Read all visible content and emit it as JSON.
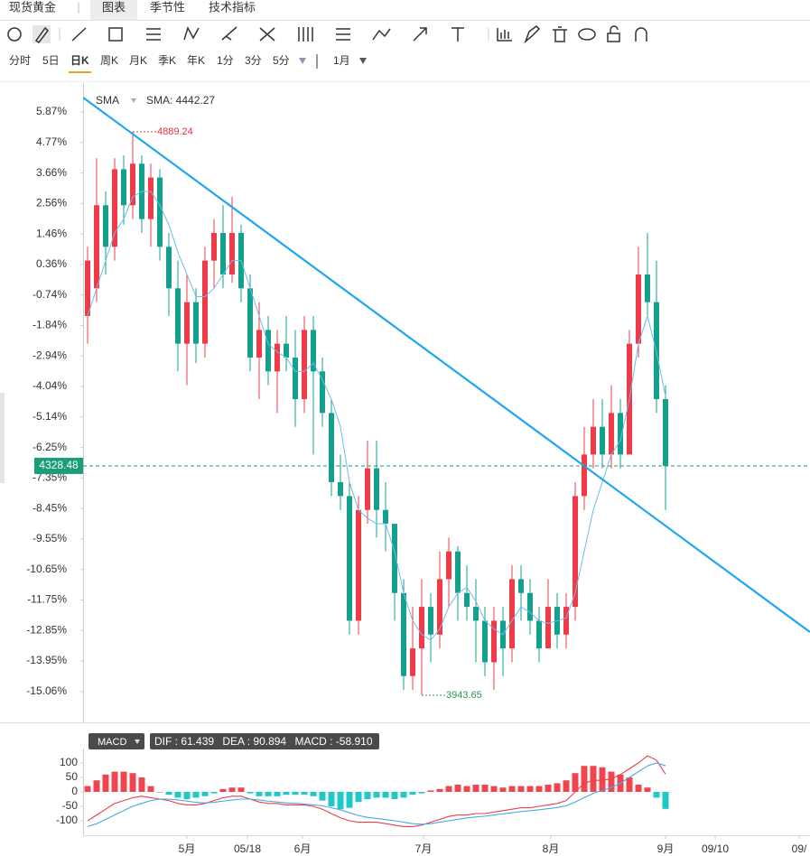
{
  "tabs": {
    "title": "现货黄金",
    "items": [
      "图表",
      "季节性",
      "技术指标"
    ]
  },
  "periods": [
    "分时",
    "5日",
    "日K",
    "周K",
    "月K",
    "季K",
    "年K",
    "1分",
    "3分",
    "5分"
  ],
  "range": "1月",
  "chart_data": [
    {
      "type": "candlestick",
      "up_color": "#ef3b48",
      "down_color": "#14a08c",
      "xlim": [
        -0.5,
        80
      ],
      "ylim": [
        -16.17,
        6.91
      ],
      "yticks": [
        {
          "value": 5.87,
          "label": "5.87%"
        },
        {
          "value": 4.77,
          "label": "4.77%"
        },
        {
          "value": 3.66,
          "label": "3.66%"
        },
        {
          "value": 2.56,
          "label": "2.56%"
        },
        {
          "value": 1.46,
          "label": "1.46%"
        },
        {
          "value": 0.36,
          "label": "0.36%"
        },
        {
          "value": -0.74,
          "label": "-0.74%"
        },
        {
          "value": -1.84,
          "label": "-1.84%"
        },
        {
          "value": -2.94,
          "label": "-2.94%"
        },
        {
          "value": -4.04,
          "label": "-4.04%"
        },
        {
          "value": -5.14,
          "label": "-5.14%"
        },
        {
          "value": -6.25,
          "label": "-6.25%"
        },
        {
          "value": -7.35,
          "label": "-7.35%"
        },
        {
          "value": -8.45,
          "label": "-8.45%"
        },
        {
          "value": -9.55,
          "label": "-9.55%"
        },
        {
          "value": -10.65,
          "label": "-10.65%"
        },
        {
          "value": -11.75,
          "label": "-11.75%"
        },
        {
          "value": -12.85,
          "label": "-12.85%"
        },
        {
          "value": -13.95,
          "label": "-13.95%"
        },
        {
          "value": -15.06,
          "label": "-15.06%"
        }
      ],
      "open": [
        -1.5,
        -0.5,
        2.5,
        1.0,
        3.8,
        2.5,
        4.0,
        2.0,
        3.5,
        1.0,
        -0.5,
        -2.5,
        -1.0,
        -2.5,
        0.5,
        1.5,
        0.0,
        1.5,
        -0.5,
        -3.0,
        -2.0,
        -3.5,
        -2.5,
        -3.0,
        -4.5,
        -2.0,
        -3.5,
        -5.0,
        -7.5,
        -8.0,
        -12.5,
        -8.5,
        -7.0,
        -8.5,
        -9.0,
        -11.5,
        -14.5,
        -13.5,
        -12.0,
        -13.0,
        -11.0,
        -10.0,
        -11.5,
        -12.0,
        -12.5,
        -14.0,
        -12.5,
        -13.5,
        -11.0,
        -11.5,
        -12.5,
        -13.5,
        -12.0,
        -13.0,
        -12.0,
        -8.0,
        -6.5,
        -5.5,
        -6.5,
        -5.0,
        -6.5,
        -2.5,
        0.0,
        -1.0,
        -4.5
      ],
      "close": [
        0.5,
        2.5,
        1.0,
        3.8,
        2.5,
        4.0,
        2.0,
        3.5,
        1.0,
        -0.5,
        -2.5,
        -1.0,
        -2.5,
        0.5,
        1.5,
        0.0,
        1.5,
        -0.5,
        -3.0,
        -2.0,
        -3.5,
        -2.5,
        -3.0,
        -4.5,
        -2.0,
        -3.5,
        -5.0,
        -7.5,
        -8.0,
        -12.5,
        -8.5,
        -7.0,
        -8.5,
        -9.0,
        -11.5,
        -14.5,
        -13.5,
        -12.0,
        -13.0,
        -11.0,
        -10.0,
        -11.5,
        -12.0,
        -12.5,
        -14.0,
        -12.5,
        -13.5,
        -11.0,
        -11.5,
        -12.5,
        -13.5,
        -12.0,
        -13.0,
        -12.0,
        -8.0,
        -6.5,
        -5.5,
        -6.5,
        -5.0,
        -6.5,
        -2.5,
        0.0,
        -1.0,
        -4.5,
        -6.91
      ],
      "high": [
        1.0,
        4.2,
        3.0,
        4.2,
        4.3,
        5.15,
        4.3,
        4.0,
        3.8,
        1.5,
        0.5,
        0.0,
        -0.5,
        1.0,
        2.0,
        2.5,
        2.8,
        1.8,
        0.0,
        -1.0,
        -1.5,
        -2.0,
        -1.5,
        -2.0,
        -1.5,
        -1.5,
        -3.0,
        -4.5,
        -6.5,
        -7.5,
        -8.0,
        -6.0,
        -6.0,
        -7.5,
        -9.0,
        -11.0,
        -12.0,
        -11.0,
        -11.5,
        -10.0,
        -9.5,
        -9.8,
        -10.5,
        -11.0,
        -12.0,
        -12.0,
        -12.0,
        -10.5,
        -10.5,
        -11.0,
        -12.0,
        -11.0,
        -11.5,
        -11.5,
        -7.5,
        -5.5,
        -4.5,
        -4.5,
        -4.0,
        -4.5,
        -2.0,
        1.0,
        1.5,
        0.5,
        -4.0
      ],
      "low": [
        -2.5,
        -1.0,
        0.0,
        0.5,
        1.8,
        2.0,
        1.5,
        1.0,
        0.5,
        -1.5,
        -3.5,
        -4.0,
        -3.2,
        -3.0,
        -0.5,
        -0.5,
        -0.3,
        -1.0,
        -3.5,
        -4.5,
        -4.0,
        -5.0,
        -3.5,
        -5.5,
        -5.0,
        -6.5,
        -5.5,
        -8.0,
        -8.5,
        -13.0,
        -13.0,
        -9.0,
        -9.5,
        -10.0,
        -12.5,
        -15.0,
        -15.0,
        -15.19,
        -14.0,
        -13.5,
        -12.0,
        -12.5,
        -12.5,
        -14.0,
        -14.5,
        -15.0,
        -14.5,
        -14.0,
        -12.5,
        -13.0,
        -14.0,
        -13.5,
        -13.5,
        -13.5,
        -12.5,
        -8.5,
        -7.0,
        -7.0,
        -7.0,
        -7.0,
        -6.5,
        -3.0,
        -1.5,
        -5.0,
        -8.5
      ],
      "sma": {
        "name": "SMA",
        "label": "SMA: 4442.27",
        "color": "#6cbdea",
        "values": [
          -1.5,
          -0.5,
          0.5,
          1.5,
          2.0,
          2.8,
          3.0,
          3.0,
          2.5,
          1.8,
          0.8,
          0,
          -0.8,
          -0.8,
          -0.5,
          0,
          0.5,
          0.5,
          -0.5,
          -1.5,
          -2.5,
          -2.8,
          -3.0,
          -3.5,
          -3.5,
          -3.2,
          -3.8,
          -4.5,
          -5.5,
          -7.5,
          -8.5,
          -8.8,
          -9.0,
          -9.0,
          -10.0,
          -11.5,
          -12.5,
          -13.0,
          -13.2,
          -12.8,
          -12.0,
          -11.5,
          -11.3,
          -11.8,
          -12.5,
          -12.8,
          -13.0,
          -12.5,
          -12.0,
          -12.2,
          -12.5,
          -12.6,
          -12.5,
          -12.4,
          -11.5,
          -10.0,
          -8.5,
          -7.5,
          -6.5,
          -6.0,
          -4.5,
          -2.5,
          -1.5,
          -2.8,
          -4.4
        ]
      },
      "trend_line": {
        "color": "#1ea7ee",
        "x": [
          -0.5,
          80
        ],
        "y": [
          6.39,
          -12.91
        ]
      },
      "high_label": "4889.24",
      "low_label": "3943.65",
      "last_label": "4328.48"
    },
    {
      "type": "macd",
      "name": "MACD",
      "readout": [
        "DIF : 61.439",
        "DEA : 90.894",
        "MACD : -58.910"
      ],
      "xlim": [
        -0.5,
        80
      ],
      "ylim": [
        -150,
        150
      ],
      "yticks": [
        100,
        50,
        0,
        -50,
        -100
      ],
      "xticks": [
        {
          "value": 11,
          "label": "5月"
        },
        {
          "value": 17.7,
          "label": "05/18"
        },
        {
          "value": 23.8,
          "label": "6月"
        },
        {
          "value": 37.2,
          "label": "7月"
        },
        {
          "value": 51.3,
          "label": "8月"
        },
        {
          "value": 64,
          "label": "9月"
        },
        {
          "value": 69.5,
          "label": "09/10"
        },
        {
          "value": 78.8,
          "label": "09/"
        }
      ],
      "up_color": "#f0454f",
      "down_color": "#1ec9c9",
      "histogram": [
        20,
        40,
        60,
        70,
        70,
        65,
        50,
        20,
        0,
        -10,
        -20,
        -25,
        -20,
        -15,
        -5,
        10,
        15,
        15,
        -5,
        -15,
        -15,
        -15,
        -10,
        -10,
        -10,
        -15,
        -30,
        -50,
        -60,
        -55,
        -35,
        -25,
        -20,
        -20,
        -25,
        -20,
        -10,
        -5,
        5,
        10,
        20,
        25,
        20,
        25,
        25,
        20,
        15,
        20,
        20,
        20,
        20,
        25,
        30,
        40,
        65,
        90,
        90,
        85,
        70,
        60,
        50,
        25,
        15,
        -20,
        -58.91
      ],
      "series": [
        {
          "name": "DIF",
          "color": "#e8404a",
          "values": [
            -100,
            -80,
            -60,
            -40,
            -30,
            -20,
            -15,
            -20,
            -25,
            -30,
            -40,
            -45,
            -45,
            -40,
            -30,
            -20,
            -15,
            -15,
            -25,
            -35,
            -40,
            -40,
            -45,
            -45,
            -45,
            -50,
            -60,
            -75,
            -90,
            -100,
            -105,
            -105,
            -105,
            -110,
            -115,
            -120,
            -120,
            -115,
            -105,
            -95,
            -85,
            -80,
            -80,
            -75,
            -75,
            -70,
            -65,
            -60,
            -55,
            -55,
            -50,
            -45,
            -40,
            -30,
            0,
            30,
            40,
            40,
            45,
            60,
            80,
            100,
            125,
            110,
            61.439
          ]
        },
        {
          "name": "DEA",
          "color": "#4aa8e8",
          "values": [
            -120,
            -110,
            -95,
            -80,
            -65,
            -50,
            -40,
            -30,
            -25,
            -25,
            -28,
            -32,
            -36,
            -38,
            -36,
            -32,
            -28,
            -25,
            -25,
            -28,
            -32,
            -35,
            -38,
            -40,
            -42,
            -45,
            -48,
            -55,
            -62,
            -72,
            -82,
            -88,
            -92,
            -96,
            -100,
            -105,
            -110,
            -112,
            -110,
            -105,
            -100,
            -95,
            -90,
            -87,
            -84,
            -80,
            -76,
            -72,
            -68,
            -65,
            -62,
            -58,
            -54,
            -48,
            -35,
            -20,
            -5,
            5,
            15,
            30,
            50,
            70,
            90,
            100,
            90.894
          ]
        }
      ]
    }
  ]
}
